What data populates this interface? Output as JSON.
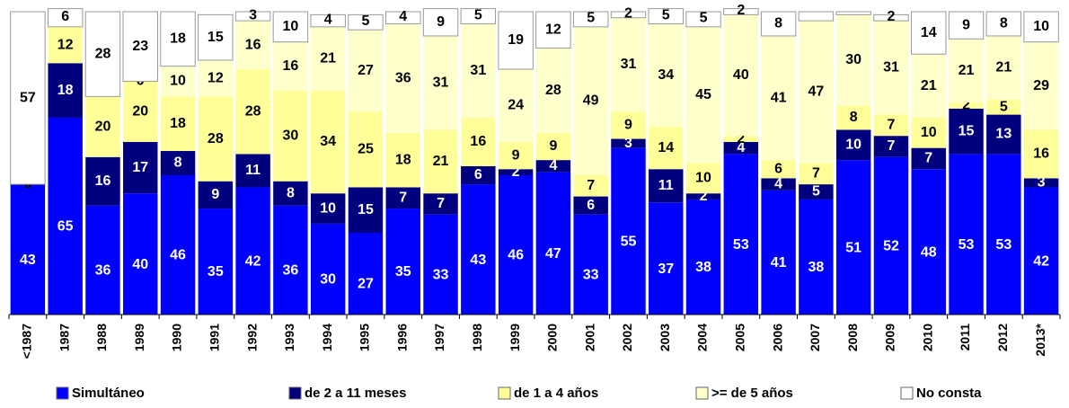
{
  "chart_data": {
    "type": "stacked_bar",
    "categories": [
      "<1987",
      "1987",
      "1988",
      "1989",
      "1990",
      "1991",
      "1992",
      "1993",
      "1994",
      "1995",
      "1996",
      "1997",
      "1998",
      "1999",
      "2000",
      "2001",
      "2002",
      "2003",
      "2004",
      "2005",
      "2006",
      "2007",
      "2008",
      "2009",
      "2010",
      "2011",
      "2012",
      "2013*"
    ],
    "ylim": [
      0,
      100
    ],
    "series": [
      {
        "name": "Simultáneo",
        "color": "#0000ff",
        "values": [
          43,
          65,
          36,
          40,
          46,
          35,
          42,
          36,
          30,
          27,
          35,
          33,
          43,
          46,
          47,
          33,
          55,
          37,
          38,
          53,
          41,
          38,
          51,
          52,
          48,
          53,
          53,
          42
        ]
      },
      {
        "name": "de 2 a 11 meses",
        "color": "#00007f",
        "values": [
          0,
          18,
          16,
          17,
          8,
          9,
          11,
          8,
          10,
          15,
          7,
          7,
          6,
          2,
          4,
          6,
          3,
          11,
          2,
          4,
          4,
          5,
          10,
          7,
          7,
          15,
          13,
          3
        ]
      },
      {
        "name": "de 1 a 4 años",
        "color": "#ffff99",
        "values": [
          0,
          12,
          20,
          20,
          18,
          28,
          28,
          30,
          34,
          25,
          18,
          21,
          16,
          9,
          9,
          7,
          9,
          14,
          10,
          2,
          6,
          7,
          8,
          7,
          10,
          2,
          5,
          16
        ]
      },
      {
        "name": ">= de 5 años",
        "color": "#ffffcc",
        "values": [
          0,
          null,
          null,
          0,
          10,
          12,
          16,
          16,
          21,
          27,
          36,
          31,
          31,
          24,
          28,
          49,
          31,
          34,
          45,
          40,
          41,
          47,
          30,
          31,
          21,
          21,
          21,
          29
        ]
      },
      {
        "name": "No consta",
        "color": "#ffffff",
        "values": [
          57,
          6,
          28,
          23,
          18,
          15,
          3,
          10,
          4,
          5,
          4,
          9,
          5,
          19,
          12,
          5,
          2,
          5,
          5,
          2,
          8,
          3,
          1,
          2,
          14,
          9,
          8,
          10
        ],
        "value_labels": [
          "57",
          "6",
          "28",
          "23",
          "18",
          "15",
          "3",
          "10",
          "4",
          "5",
          "4",
          "9",
          "5",
          "19",
          "12",
          "5",
          "2",
          "5",
          "5",
          "2",
          "8",
          null,
          null,
          "2",
          "14",
          "9",
          "8",
          "10"
        ]
      }
    ]
  }
}
